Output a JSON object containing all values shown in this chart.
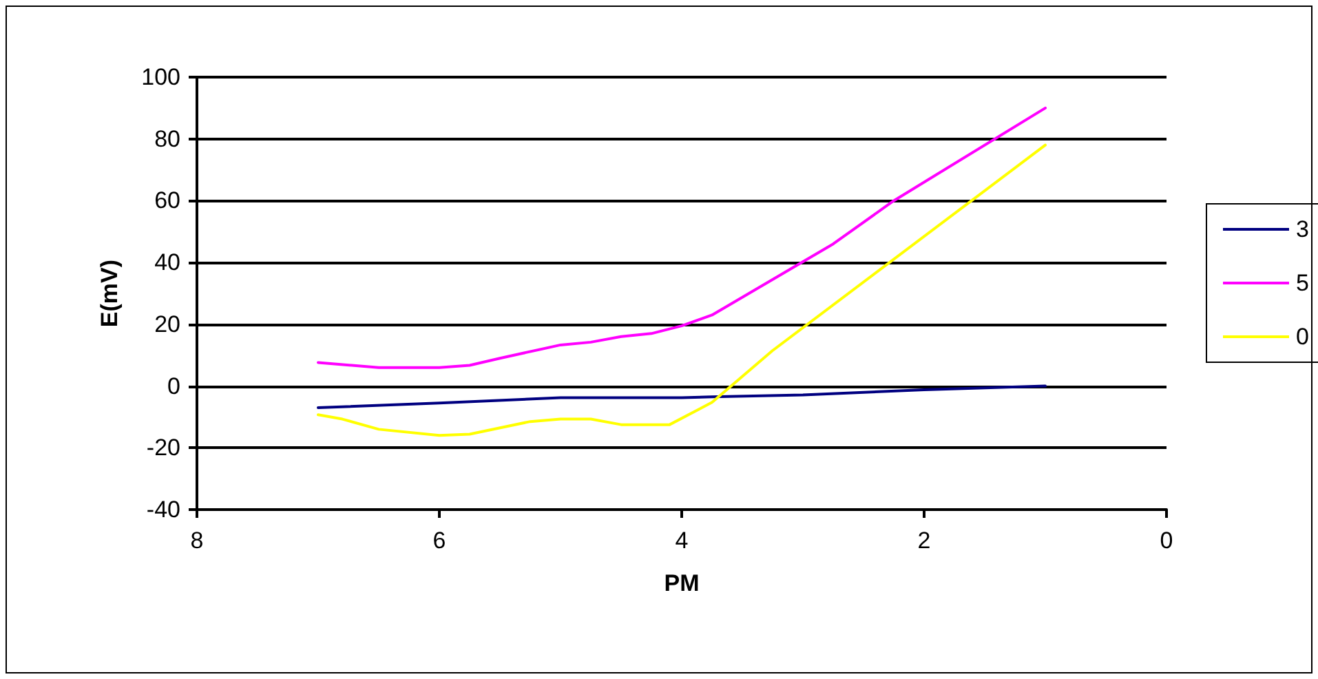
{
  "chart_data": {
    "type": "line",
    "xlabel": "PM",
    "ylabel": "E(mV)",
    "xlim": [
      8,
      0
    ],
    "xticks": [
      0,
      2,
      4,
      6,
      8
    ],
    "ylim": [
      -40,
      100
    ],
    "yticks": [
      -40,
      -20,
      0,
      20,
      40,
      60,
      80,
      100
    ],
    "grid": "y",
    "legend": "right",
    "marker": "none",
    "line_style": "solid",
    "series": [
      {
        "name": "3",
        "color": "#000080",
        "x": [
          7,
          6,
          5,
          4,
          3.75,
          3,
          2,
          1
        ],
        "values": [
          -7,
          -5.5,
          -3.8,
          -3.8,
          -3.5,
          -2.9,
          -1.2,
          0
        ]
      },
      {
        "name": "5",
        "color": "#ff00ff",
        "x": [
          7,
          6.5,
          6,
          5.75,
          5.5,
          5,
          4.75,
          4.5,
          4.25,
          4,
          3.75,
          2.75,
          2.25,
          1
        ],
        "values": [
          7.6,
          6,
          6,
          6.7,
          9,
          13.3,
          14.2,
          16,
          17,
          19.5,
          23,
          46,
          60,
          90
        ]
      },
      {
        "name": "0",
        "color": "#ffff00",
        "x": [
          7,
          6.8,
          6.5,
          6,
          5.75,
          5.25,
          5,
          4.75,
          4.5,
          4.1,
          3.75,
          3.25,
          1
        ],
        "values": [
          -9.3,
          -10.7,
          -14,
          -16,
          -15.6,
          -11.5,
          -10.7,
          -10.7,
          -12.5,
          -12.5,
          -5.3,
          11.5,
          78
        ]
      }
    ]
  }
}
